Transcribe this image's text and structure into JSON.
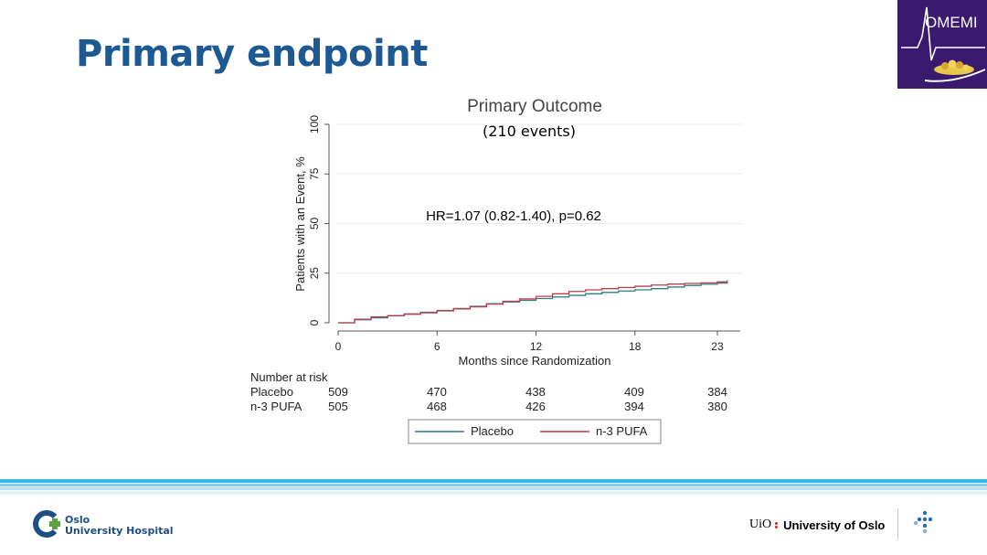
{
  "slide": {
    "title": "Primary endpoint"
  },
  "logo": {
    "text": "OMEMI",
    "color": "#3a1a6e"
  },
  "chart_data": {
    "type": "line",
    "title": "Primary Outcome",
    "subtitle": "(210 events)",
    "annotation": "HR=1.07 (0.82-1.40), p=0.62",
    "xlabel": "Months since Randomization",
    "ylabel": "Patients with an Event, %",
    "xlim": [
      0,
      24
    ],
    "ylim": [
      0,
      100
    ],
    "x_ticks": [
      0,
      6,
      12,
      18,
      23
    ],
    "y_ticks": [
      0,
      25,
      50,
      75,
      100
    ],
    "grid": true,
    "legend_position": "bottom",
    "series": [
      {
        "name": "Placebo",
        "color": "#2f7d86",
        "x": [
          0,
          1,
          2,
          3,
          4,
          5,
          6,
          7,
          8,
          9,
          10,
          11,
          12,
          13,
          14,
          15,
          16,
          17,
          18,
          19,
          20,
          21,
          22,
          23,
          23.6
        ],
        "y": [
          0,
          1.5,
          2.5,
          3.5,
          4.5,
          5.3,
          6.2,
          7.2,
          8.3,
          9.6,
          10.5,
          11.3,
          12.2,
          13.0,
          13.8,
          14.6,
          15.3,
          16.0,
          16.6,
          17.2,
          18.0,
          18.8,
          19.4,
          20.0,
          20.6
        ]
      },
      {
        "name": "n-3 PUFA",
        "color": "#b8404a",
        "x": [
          0,
          1,
          2,
          3,
          4,
          5,
          6,
          7,
          8,
          9,
          10,
          11,
          12,
          13,
          14,
          15,
          16,
          17,
          18,
          19,
          20,
          21,
          22,
          23,
          23.6
        ],
        "y": [
          0,
          1.8,
          3.0,
          3.6,
          4.3,
          5.0,
          6.0,
          7.0,
          8.0,
          9.4,
          10.8,
          12.0,
          13.3,
          14.6,
          15.8,
          16.6,
          17.2,
          17.8,
          18.4,
          19.0,
          19.5,
          19.8,
          20.1,
          20.6,
          21.4
        ]
      }
    ],
    "risk_table": {
      "title": "Number at risk",
      "rows": [
        {
          "label": "Placebo",
          "values": [
            "509",
            "470",
            "438",
            "409",
            "384"
          ]
        },
        {
          "label": "n-3 PUFA",
          "values": [
            "505",
            "468",
            "426",
            "394",
            "380"
          ]
        }
      ]
    }
  },
  "footer": {
    "hospital_line1": "Oslo",
    "hospital_line2": "University Hospital",
    "uio_abbr": "UiO",
    "uio_name": "University of Oslo"
  }
}
